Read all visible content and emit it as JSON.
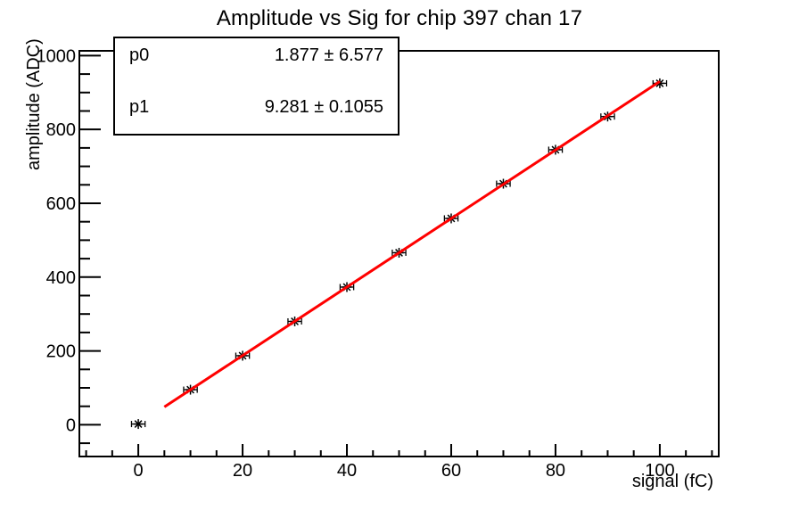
{
  "title": "Amplitude vs Sig for chip 397 chan 17",
  "stats_box": {
    "rows": [
      {
        "param": "p0",
        "value": "1.877 ± 6.577"
      },
      {
        "param": "p1",
        "value": "9.281 ± 0.1055"
      }
    ]
  },
  "chart_data": {
    "type": "scatter",
    "title": "Amplitude vs Sig for chip 397 chan 17",
    "xlabel": "signal (fC)",
    "ylabel": "amplitude (ADC)",
    "xlim": [
      -11.3,
      111.3
    ],
    "ylim": [
      -86,
      1013
    ],
    "x": [
      0,
      10,
      20,
      30,
      40,
      50,
      60,
      70,
      80,
      90,
      100
    ],
    "y": [
      2,
      95,
      187,
      280,
      373,
      466,
      559,
      653,
      745,
      835,
      925
    ],
    "x_error": 1.3,
    "x_major_ticks": [
      0,
      20,
      40,
      60,
      80,
      100
    ],
    "x_minor_step": 5,
    "y_major_ticks": [
      0,
      200,
      400,
      600,
      800,
      1000
    ],
    "y_minor_step": 50,
    "grid": false,
    "legend_position": "none",
    "marker_style": "asterisk",
    "fit": {
      "p0": 1.877,
      "p0_err": 6.577,
      "p1": 9.281,
      "p1_err": 0.1055,
      "range": [
        5,
        100
      ]
    },
    "colors": {
      "fit_line": "#ff0000",
      "marker": "#000000",
      "axis": "#000000",
      "text": "#000000",
      "background": "#ffffff"
    }
  }
}
